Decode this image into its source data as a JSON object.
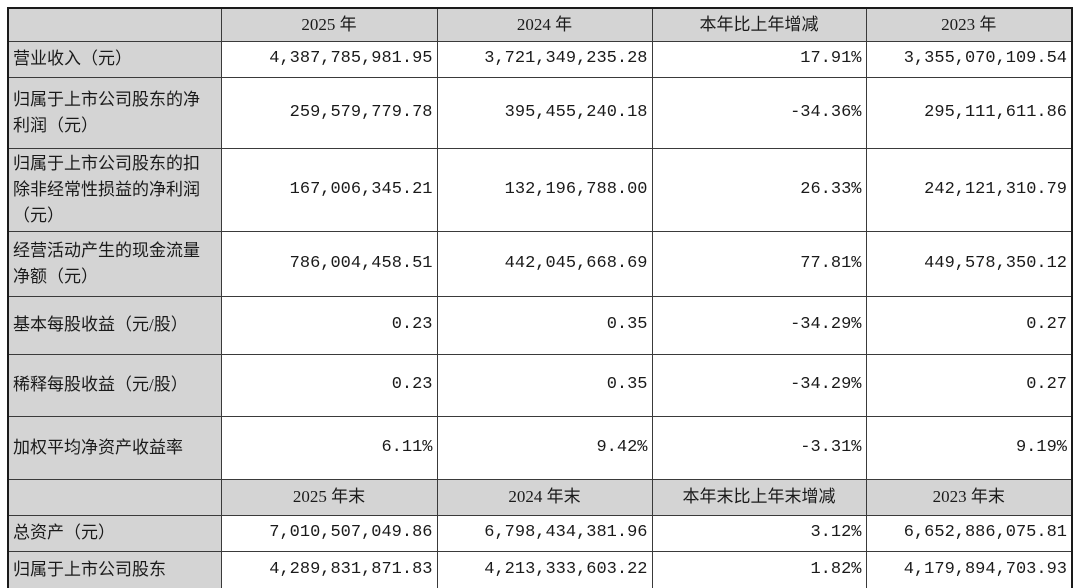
{
  "document": {
    "type": "financial-summary-table",
    "language": "zh-CN"
  },
  "colors": {
    "header_bg": "#d4d4d4",
    "grid_border": "#3a3a3a",
    "outer_border": "#1a1a1a",
    "text": "#1a1a1a",
    "page_bg": "#ffffff"
  },
  "table": {
    "sections": [
      {
        "header": [
          "",
          "2025 年",
          "2024 年",
          "本年比上年增减",
          "2023 年"
        ],
        "rows": [
          {
            "label": "营业收入（元）",
            "values": [
              "4,387,785,981.95",
              "3,721,349,235.28",
              "17.91%",
              "3,355,070,109.54"
            ]
          },
          {
            "label": "归属于上市公司股东的净利润（元）",
            "values": [
              "259,579,779.78",
              "395,455,240.18",
              "-34.36%",
              "295,111,611.86"
            ]
          },
          {
            "label": "归属于上市公司股东的扣除非经常性损益的净利润（元）",
            "values": [
              "167,006,345.21",
              "132,196,788.00",
              "26.33%",
              "242,121,310.79"
            ]
          },
          {
            "label": "经营活动产生的现金流量净额（元）",
            "values": [
              "786,004,458.51",
              "442,045,668.69",
              "77.81%",
              "449,578,350.12"
            ]
          },
          {
            "label": "基本每股收益（元/股）",
            "values": [
              "0.23",
              "0.35",
              "-34.29%",
              "0.27"
            ]
          },
          {
            "label": "稀释每股收益（元/股）",
            "values": [
              "0.23",
              "0.35",
              "-34.29%",
              "0.27"
            ]
          },
          {
            "label": "加权平均净资产收益率",
            "values": [
              "6.11%",
              "9.42%",
              "-3.31%",
              "9.19%"
            ]
          }
        ]
      },
      {
        "header": [
          "",
          "2025 年末",
          "2024 年末",
          "本年末比上年末增减",
          "2023 年末"
        ],
        "rows": [
          {
            "label": "总资产（元）",
            "values": [
              "7,010,507,049.86",
              "6,798,434,381.96",
              "3.12%",
              "6,652,886,075.81"
            ]
          },
          {
            "label": "归属于上市公司股东",
            "values": [
              "4,289,831,871.83",
              "4,213,333,603.22",
              "1.82%",
              "4,179,894,703.93"
            ]
          }
        ]
      }
    ]
  }
}
